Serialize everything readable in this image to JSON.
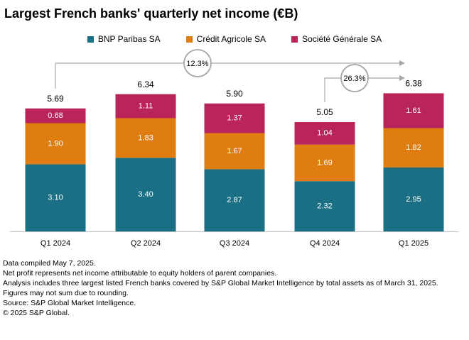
{
  "chart_data": {
    "type": "bar",
    "stacked": true,
    "title": "Largest French banks' quarterly net income (€B)",
    "categories": [
      "Q1 2024",
      "Q2 2024",
      "Q3 2024",
      "Q4 2024",
      "Q1 2025"
    ],
    "series": [
      {
        "name": "BNP Paribas SA",
        "color": "#1a6f84",
        "values": [
          3.1,
          3.4,
          2.87,
          2.32,
          2.95
        ],
        "labels": [
          "3.10",
          "3.40",
          "2.87",
          "2.32",
          "2.95"
        ]
      },
      {
        "name": "Crédit Agricole SA",
        "color": "#e07d10",
        "values": [
          1.9,
          1.83,
          1.67,
          1.69,
          1.82
        ],
        "labels": [
          "1.90",
          "1.83",
          "1.67",
          "1.69",
          "1.82"
        ]
      },
      {
        "name": "Société Générale SA",
        "color": "#b9245a",
        "values": [
          0.68,
          1.11,
          1.37,
          1.04,
          1.61
        ],
        "labels": [
          "0.68",
          "1.11",
          "1.37",
          "1.04",
          "1.61"
        ]
      }
    ],
    "totals": [
      "5.69",
      "6.34",
      "5.90",
      "5.05",
      "6.38"
    ],
    "total_values": [
      5.69,
      6.34,
      5.9,
      5.05,
      6.38
    ],
    "annotations": [
      {
        "label": "12.3%",
        "from": "Q1 2024",
        "to": "Q1 2025"
      },
      {
        "label": "26.3%",
        "from": "Q4 2024",
        "to": "Q1 2025"
      }
    ],
    "ylim": [
      0,
      7
    ],
    "xlabel": "",
    "ylabel": "",
    "grid": false,
    "legend": "top-center"
  },
  "notes": [
    "Data compiled May 7, 2025.",
    "Net profit represents net income attributable to equity holders of parent companies.",
    "Analysis includes three largest listed French banks covered by S&P Global Market Intelligence by total assets as of March 31, 2025.",
    "Figures may not sum due to rounding.",
    "Source: S&P Global Market Intelligence.",
    "© 2025 S&P Global."
  ]
}
